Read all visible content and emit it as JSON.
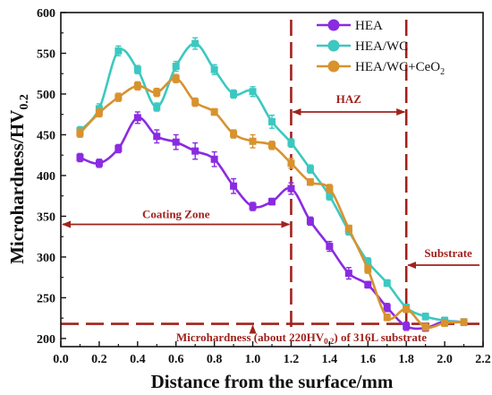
{
  "chart_data": {
    "type": "line",
    "xlabel": "Distance from the surface/mm",
    "ylabel": "Microhardness/HV",
    "ylabel_sub": "0.2",
    "xlim": [
      0.0,
      2.2
    ],
    "ylim": [
      190,
      600
    ],
    "x_ticks": [
      "0.0",
      "0.2",
      "0.4",
      "0.6",
      "0.8",
      "1.0",
      "1.2",
      "1.4",
      "1.6",
      "1.8",
      "2.0",
      "2.2"
    ],
    "y_ticks": [
      "200",
      "250",
      "300",
      "350",
      "400",
      "450",
      "500",
      "550",
      "600"
    ],
    "x_tick_values": [
      0.0,
      0.2,
      0.4,
      0.6,
      0.8,
      1.0,
      1.2,
      1.4,
      1.6,
      1.8,
      2.0,
      2.2
    ],
    "y_tick_values": [
      200,
      250,
      300,
      350,
      400,
      450,
      500,
      550,
      600
    ],
    "legend_position": "top-right",
    "series": [
      {
        "name": "HEA",
        "color": "#8a2be2",
        "x": [
          0.1,
          0.2,
          0.3,
          0.4,
          0.5,
          0.6,
          0.7,
          0.8,
          0.9,
          1.0,
          1.1,
          1.2,
          1.3,
          1.4,
          1.5,
          1.6,
          1.7,
          1.8,
          1.9,
          2.0,
          2.1
        ],
        "y": [
          422,
          415,
          433,
          471,
          448,
          441,
          430,
          420,
          387,
          362,
          368,
          384,
          344,
          313,
          280,
          266,
          238,
          215,
          213,
          221,
          220
        ],
        "err": [
          5,
          5,
          5,
          7,
          8,
          9,
          10,
          9,
          9,
          5,
          4,
          7,
          5,
          6,
          7,
          4,
          5,
          5,
          4,
          5,
          4
        ]
      },
      {
        "name": "HEA/WC",
        "color": "#3cc8c0",
        "x": [
          0.1,
          0.2,
          0.3,
          0.4,
          0.5,
          0.6,
          0.7,
          0.8,
          0.9,
          1.0,
          1.1,
          1.2,
          1.3,
          1.4,
          1.5,
          1.6,
          1.7,
          1.8,
          1.9,
          2.0,
          2.1
        ],
        "y": [
          455,
          482,
          553,
          530,
          484,
          534,
          562,
          530,
          500,
          503,
          466,
          440,
          408,
          375,
          332,
          294,
          268,
          238,
          227,
          222,
          220
        ],
        "err": [
          5,
          6,
          6,
          5,
          5,
          6,
          7,
          6,
          5,
          6,
          8,
          5,
          5,
          5,
          5,
          5,
          4,
          4,
          4,
          4,
          4
        ]
      },
      {
        "name": "HEA/WC+CeO",
        "name_sub": "2",
        "color": "#d8922e",
        "x": [
          0.1,
          0.2,
          0.3,
          0.4,
          0.5,
          0.6,
          0.7,
          0.8,
          0.9,
          1.0,
          1.1,
          1.2,
          1.3,
          1.4,
          1.5,
          1.6,
          1.7,
          1.8,
          1.9,
          2.0,
          2.1
        ],
        "y": [
          452,
          477,
          496,
          510,
          502,
          519,
          490,
          478,
          451,
          442,
          437,
          415,
          392,
          384,
          335,
          285,
          226,
          236,
          214,
          219,
          220
        ],
        "err": [
          5,
          5,
          5,
          5,
          5,
          5,
          5,
          4,
          5,
          8,
          5,
          6,
          4,
          5,
          4,
          5,
          4,
          4,
          4,
          4,
          4
        ]
      }
    ],
    "annotations": {
      "color": "#a0221d",
      "vlines": [
        1.2,
        1.8
      ],
      "hline": 218,
      "coating_zone": {
        "text": "Coating Zone",
        "x_from": 0.0,
        "x_to": 1.2,
        "y": 340
      },
      "haz": {
        "text": "HAZ",
        "x_from": 1.2,
        "x_to": 1.8,
        "y": 478
      },
      "substrate": {
        "text": "Substrate",
        "x_from": 1.8,
        "x_to": 2.2,
        "y": 290
      },
      "microhardness_note": {
        "text_prefix": "Microhardness (about 220HV",
        "text_sub": "0.2",
        "text_suffix": ") of 316L substrate",
        "arrow_x": 1.0
      }
    }
  }
}
